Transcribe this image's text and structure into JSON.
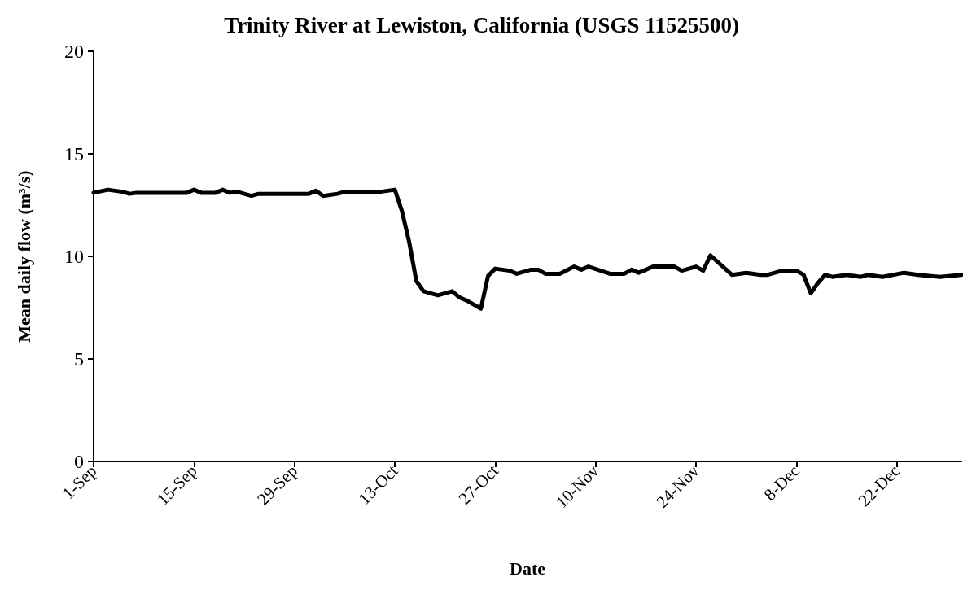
{
  "chart_data": {
    "type": "line",
    "title": "Trinity River at Lewiston, California (USGS 11525500)",
    "xlabel": "Date",
    "ylabel": "Mean daily flow (m³/s)",
    "x": [
      "--09-01",
      "--09-03",
      "--09-05",
      "--09-06",
      "--09-07",
      "--09-14",
      "--09-15",
      "--09-16",
      "--09-18",
      "--09-19",
      "--09-20",
      "--09-21",
      "--09-23",
      "--09-24",
      "--10-01",
      "--10-02",
      "--10-03",
      "--10-05",
      "--10-06",
      "--10-11",
      "--10-13",
      "--10-14",
      "--10-15",
      "--10-16",
      "--10-17",
      "--10-19",
      "--10-21",
      "--10-22",
      "--10-23",
      "--10-25",
      "--10-26",
      "--10-27",
      "--10-29",
      "--10-30",
      "--11-01",
      "--11-02",
      "--11-03",
      "--11-05",
      "--11-07",
      "--11-08",
      "--11-09",
      "--11-12",
      "--11-14",
      "--11-15",
      "--11-16",
      "--11-18",
      "--11-19",
      "--11-21",
      "--11-22",
      "--11-24",
      "--11-25",
      "--11-26",
      "--11-29",
      "--12-01",
      "--12-03",
      "--12-04",
      "--12-06",
      "--12-08",
      "--12-09",
      "--12-10",
      "--12-11",
      "--12-12",
      "--12-13",
      "--12-15",
      "--12-17",
      "--12-18",
      "--12-20",
      "--12-23",
      "--12-25",
      "--12-28",
      "--12-31"
    ],
    "series": [
      {
        "color": "#000000",
        "values": [
          13.1,
          13.25,
          13.15,
          13.05,
          13.1,
          13.1,
          13.25,
          13.1,
          13.1,
          13.25,
          13.1,
          13.15,
          12.95,
          13.05,
          13.05,
          13.2,
          12.95,
          13.05,
          13.15,
          13.15,
          13.25,
          12.2,
          10.7,
          8.8,
          8.3,
          8.1,
          8.3,
          8.0,
          7.85,
          7.45,
          9.05,
          9.4,
          9.3,
          9.15,
          9.35,
          9.35,
          9.15,
          9.15,
          9.5,
          9.35,
          9.5,
          9.15,
          9.15,
          9.35,
          9.2,
          9.5,
          9.5,
          9.5,
          9.3,
          9.5,
          9.3,
          10.05,
          9.1,
          9.2,
          9.1,
          9.1,
          9.3,
          9.3,
          9.1,
          8.2,
          8.7,
          9.1,
          9.0,
          9.1,
          9.0,
          9.1,
          9.0,
          9.2,
          9.1,
          9.0,
          9.1
        ]
      }
    ],
    "xlim": [
      "--09-01",
      "--12-31"
    ],
    "xticks": [
      {
        "value": "--09-01",
        "label": "1-Sep"
      },
      {
        "value": "--09-15",
        "label": "15-Sep"
      },
      {
        "value": "--09-29",
        "label": "29-Sep"
      },
      {
        "value": "--10-13",
        "label": "13-Oct"
      },
      {
        "value": "--10-27",
        "label": "27-Oct"
      },
      {
        "value": "--11-10",
        "label": "10-Nov"
      },
      {
        "value": "--11-24",
        "label": "24-Nov"
      },
      {
        "value": "--12-08",
        "label": "8-Dec"
      },
      {
        "value": "--12-22",
        "label": "22-Dec"
      }
    ],
    "ylim": [
      0,
      20
    ],
    "yticks": [
      0,
      5,
      10,
      15,
      20
    ],
    "marker": "none",
    "line_style": "solid"
  }
}
